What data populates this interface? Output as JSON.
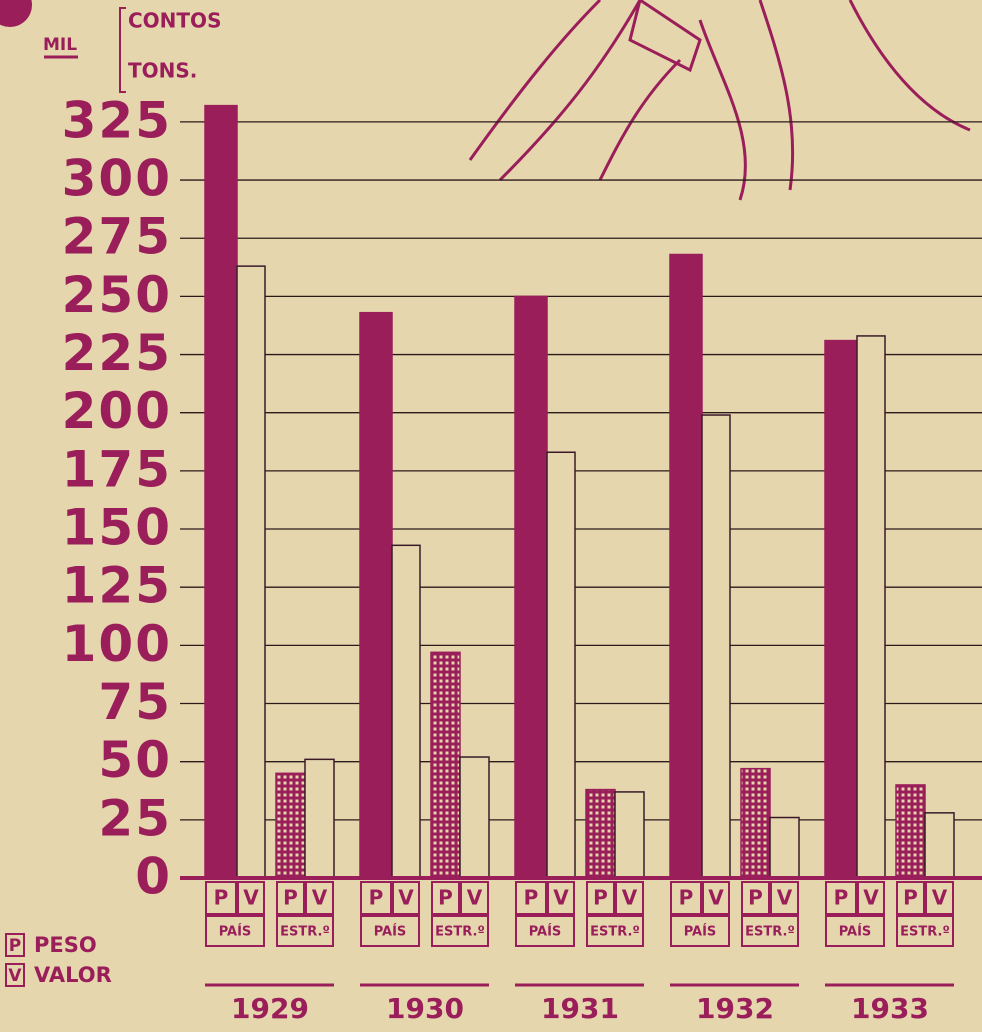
{
  "chart_data": {
    "type": "grouped-bar",
    "unit_label": "MIL",
    "axis_labels": [
      "CONTOS",
      "TONS."
    ],
    "categories": [
      "1929",
      "1930",
      "1931",
      "1932",
      "1933"
    ],
    "groups": [
      {
        "name": "PAÍS",
        "series": [
          {
            "name": "P",
            "style": "solid",
            "values": [
              332,
              243,
              250,
              268,
              231
            ]
          },
          {
            "name": "V",
            "style": "outline",
            "values": [
              263,
              143,
              183,
              199,
              233
            ]
          }
        ]
      },
      {
        "name": "ESTR.º",
        "series": [
          {
            "name": "P",
            "style": "checkered",
            "values": [
              45,
              97,
              38,
              47,
              40
            ]
          },
          {
            "name": "V",
            "style": "outline",
            "values": [
              51,
              52,
              37,
              26,
              28
            ]
          }
        ]
      }
    ],
    "legend": [
      {
        "key": "P",
        "label": "PESO"
      },
      {
        "key": "V",
        "label": "VALOR"
      }
    ],
    "color": "#9a1e5a",
    "ylim": [
      0,
      340
    ],
    "yticks": [
      0,
      25,
      50,
      75,
      100,
      125,
      150,
      175,
      200,
      225,
      250,
      275,
      300,
      325
    ],
    "grid": true
  }
}
